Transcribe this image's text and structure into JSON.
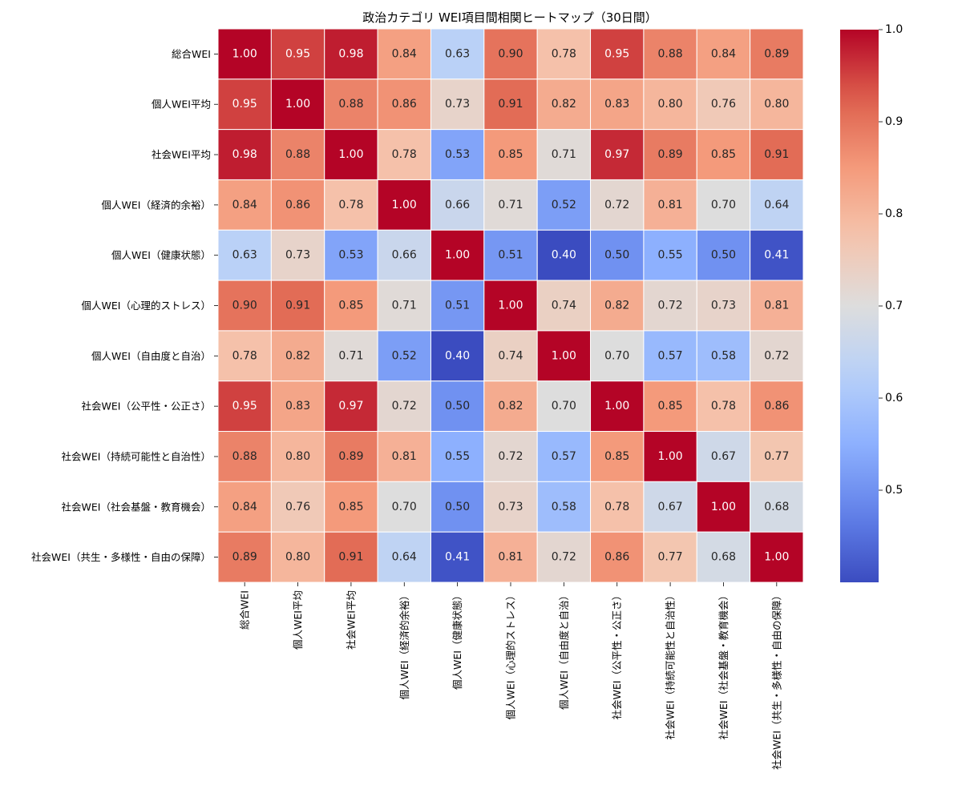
{
  "chart_data": {
    "type": "heatmap",
    "title": "政治カテゴリ WEI項目間相関ヒートマップ（30日間）",
    "labels": [
      "総合WEI",
      "個人WEI平均",
      "社会WEI平均",
      "個人WEI（経済的余裕）",
      "個人WEI（健康状態）",
      "個人WEI（心理的ストレス）",
      "個人WEI（自由度と自治）",
      "社会WEI（公平性・公正さ）",
      "社会WEI（持続可能性と自治性）",
      "社会WEI（社会基盤・教育機会）",
      "社会WEI（共生・多様性・自由の保障）"
    ],
    "matrix": [
      [
        1.0,
        0.95,
        0.98,
        0.84,
        0.63,
        0.9,
        0.78,
        0.95,
        0.88,
        0.84,
        0.89
      ],
      [
        0.95,
        1.0,
        0.88,
        0.86,
        0.73,
        0.91,
        0.82,
        0.83,
        0.8,
        0.76,
        0.8
      ],
      [
        0.98,
        0.88,
        1.0,
        0.78,
        0.53,
        0.85,
        0.71,
        0.97,
        0.89,
        0.85,
        0.91
      ],
      [
        0.84,
        0.86,
        0.78,
        1.0,
        0.66,
        0.71,
        0.52,
        0.72,
        0.81,
        0.7,
        0.64
      ],
      [
        0.63,
        0.73,
        0.53,
        0.66,
        1.0,
        0.51,
        0.4,
        0.5,
        0.55,
        0.5,
        0.41
      ],
      [
        0.9,
        0.91,
        0.85,
        0.71,
        0.51,
        1.0,
        0.74,
        0.82,
        0.72,
        0.73,
        0.81
      ],
      [
        0.78,
        0.82,
        0.71,
        0.52,
        0.4,
        0.74,
        1.0,
        0.7,
        0.57,
        0.58,
        0.72
      ],
      [
        0.95,
        0.83,
        0.97,
        0.72,
        0.5,
        0.82,
        0.7,
        1.0,
        0.85,
        0.78,
        0.86
      ],
      [
        0.88,
        0.8,
        0.89,
        0.81,
        0.55,
        0.72,
        0.57,
        0.85,
        1.0,
        0.67,
        0.77
      ],
      [
        0.84,
        0.76,
        0.85,
        0.7,
        0.5,
        0.73,
        0.58,
        0.78,
        0.67,
        1.0,
        0.68
      ],
      [
        0.89,
        0.8,
        0.91,
        0.64,
        0.41,
        0.81,
        0.72,
        0.86,
        0.77,
        0.68,
        1.0
      ]
    ],
    "colormap": "coolwarm",
    "vmin": 0.4,
    "vmax": 1.0,
    "colorbar_ticks": [
      "0.5",
      "0.6",
      "0.7",
      "0.8",
      "0.9",
      "1.0"
    ],
    "annotations": true,
    "value_format": "2 decimals"
  }
}
